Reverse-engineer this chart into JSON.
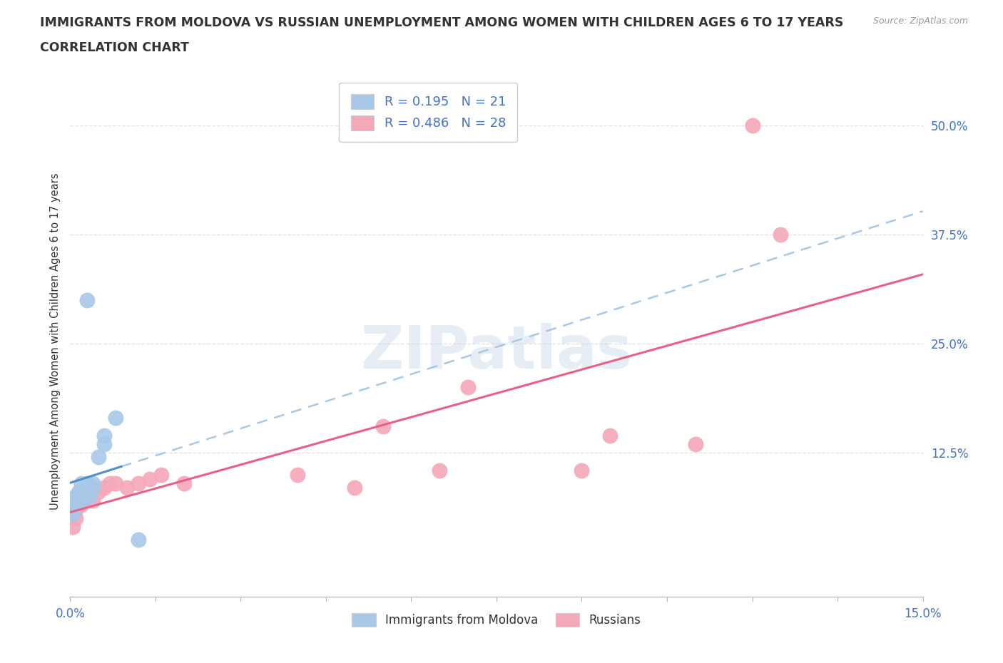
{
  "title1": "IMMIGRANTS FROM MOLDOVA VS RUSSIAN UNEMPLOYMENT AMONG WOMEN WITH CHILDREN AGES 6 TO 17 YEARS",
  "title2": "CORRELATION CHART",
  "source": "Source: ZipAtlas.com",
  "ylabel": "Unemployment Among Women with Children Ages 6 to 17 years",
  "xlim": [
    0.0,
    0.15
  ],
  "ylim": [
    -0.04,
    0.545
  ],
  "ytick_vals": [
    0.0,
    0.125,
    0.25,
    0.375,
    0.5
  ],
  "ytick_labels": [
    "",
    "12.5%",
    "25.0%",
    "37.5%",
    "50.0%"
  ],
  "xtick_vals": [
    0.0,
    0.015,
    0.03,
    0.045,
    0.06,
    0.075,
    0.09,
    0.105,
    0.12,
    0.135,
    0.15
  ],
  "xtick_labels": [
    "0.0%",
    "",
    "",
    "",
    "",
    "",
    "",
    "",
    "",
    "",
    "15.0%"
  ],
  "watermark": "ZIPatlas",
  "blue_R": "0.195",
  "blue_N": "21",
  "pink_R": "0.486",
  "pink_N": "28",
  "blue_marker_color": "#a8c8e8",
  "pink_marker_color": "#f4a8b8",
  "blue_line_color": "#a8c8e8",
  "pink_line_color": "#e8608a",
  "blue_solid_color": "#5090c8",
  "label_color": "#4472c4",
  "grid_color": "#e0e0e0",
  "bg_color": "#ffffff",
  "blue_pts": [
    [
      0.0005,
      0.055
    ],
    [
      0.001,
      0.075
    ],
    [
      0.001,
      0.065
    ],
    [
      0.0012,
      0.07
    ],
    [
      0.0015,
      0.08
    ],
    [
      0.002,
      0.07
    ],
    [
      0.002,
      0.08
    ],
    [
      0.002,
      0.09
    ],
    [
      0.0025,
      0.075
    ],
    [
      0.003,
      0.08
    ],
    [
      0.003,
      0.085
    ],
    [
      0.003,
      0.09
    ],
    [
      0.0035,
      0.075
    ],
    [
      0.004,
      0.085
    ],
    [
      0.004,
      0.09
    ],
    [
      0.005,
      0.12
    ],
    [
      0.006,
      0.135
    ],
    [
      0.006,
      0.145
    ],
    [
      0.008,
      0.165
    ],
    [
      0.003,
      0.3
    ],
    [
      0.012,
      0.025
    ]
  ],
  "pink_pts": [
    [
      0.0005,
      0.04
    ],
    [
      0.001,
      0.05
    ],
    [
      0.001,
      0.06
    ],
    [
      0.0015,
      0.07
    ],
    [
      0.002,
      0.065
    ],
    [
      0.002,
      0.07
    ],
    [
      0.003,
      0.075
    ],
    [
      0.003,
      0.08
    ],
    [
      0.004,
      0.07
    ],
    [
      0.005,
      0.08
    ],
    [
      0.006,
      0.085
    ],
    [
      0.007,
      0.09
    ],
    [
      0.008,
      0.09
    ],
    [
      0.01,
      0.085
    ],
    [
      0.012,
      0.09
    ],
    [
      0.014,
      0.095
    ],
    [
      0.016,
      0.1
    ],
    [
      0.02,
      0.09
    ],
    [
      0.04,
      0.1
    ],
    [
      0.05,
      0.085
    ],
    [
      0.055,
      0.155
    ],
    [
      0.065,
      0.105
    ],
    [
      0.07,
      0.2
    ],
    [
      0.09,
      0.105
    ],
    [
      0.095,
      0.145
    ],
    [
      0.11,
      0.135
    ],
    [
      0.12,
      0.5
    ],
    [
      0.125,
      0.375
    ]
  ]
}
